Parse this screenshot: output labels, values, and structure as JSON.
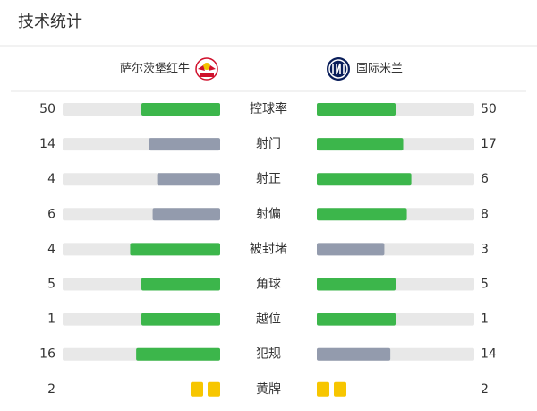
{
  "header": {
    "title": "技术统计"
  },
  "teams": {
    "home": "萨尔茨堡红牛",
    "away": "国际米兰"
  },
  "colors": {
    "lead": "#3cb64b",
    "trail": "#939bad",
    "track": "#e8e8e8",
    "card": "#f7c600"
  },
  "rows": [
    {
      "label": "控球率",
      "home": 50,
      "away": 50
    },
    {
      "label": "射门",
      "home": 14,
      "away": 17
    },
    {
      "label": "射正",
      "home": 4,
      "away": 6
    },
    {
      "label": "射偏",
      "home": 6,
      "away": 8
    },
    {
      "label": "被封堵",
      "home": 4,
      "away": 3
    },
    {
      "label": "角球",
      "home": 5,
      "away": 5
    },
    {
      "label": "越位",
      "home": 1,
      "away": 1
    },
    {
      "label": "犯规",
      "home": 16,
      "away": 14
    },
    {
      "label": "黄牌",
      "home": 2,
      "away": 2,
      "marker": "card"
    }
  ]
}
